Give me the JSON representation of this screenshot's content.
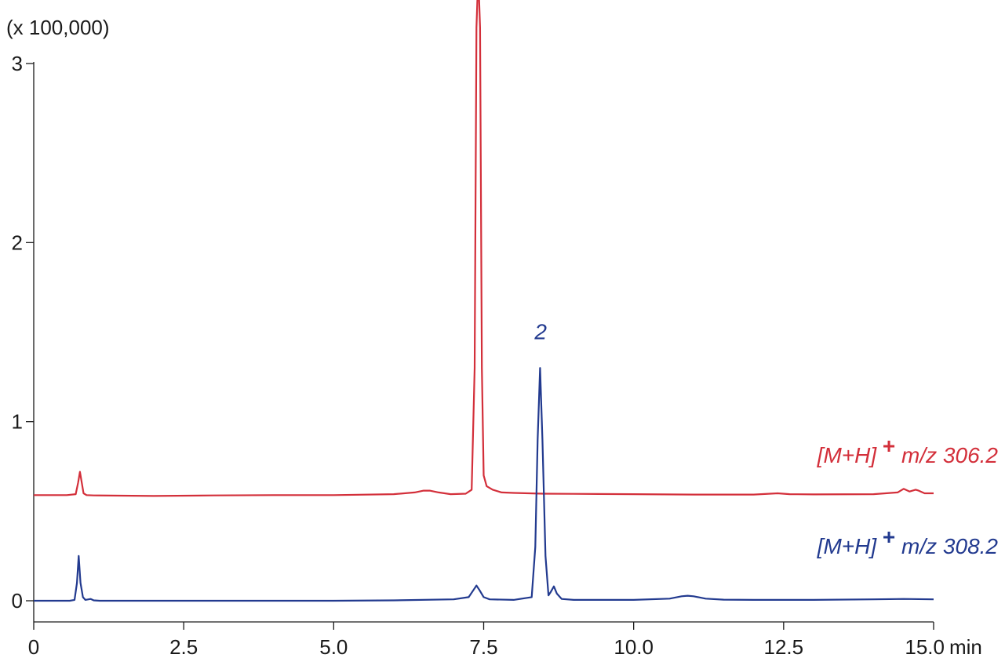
{
  "chart_data": {
    "type": "line",
    "ylabel": "(x 100,000)",
    "xunit": "min",
    "xlim": [
      0,
      15
    ],
    "ylim": [
      0,
      3
    ],
    "xticks": [
      "0",
      "2.5",
      "5.0",
      "7.5",
      "10.0",
      "12.5",
      "15.0"
    ],
    "yticks": [
      "0",
      "1",
      "2",
      "3"
    ],
    "annotations": [
      {
        "text": "2",
        "x": 8.45,
        "y": 1.46,
        "color": "#223a8f"
      }
    ],
    "series": [
      {
        "name": "[M+H] + m/z 306.2",
        "label_main": "[M+H]",
        "label_sup": "+",
        "label_tail": "m/z 306.2",
        "color": "#d32f3a",
        "x": [
          0,
          0.55,
          0.7,
          0.74,
          0.77,
          0.8,
          0.83,
          0.88,
          1.0,
          2.0,
          3.0,
          4.0,
          5.0,
          6.0,
          6.35,
          6.5,
          6.6,
          6.75,
          6.95,
          7.2,
          7.3,
          7.35,
          7.38,
          7.41,
          7.44,
          7.47,
          7.5,
          7.55,
          7.65,
          7.8,
          8.0,
          8.5,
          9.0,
          10.0,
          11.0,
          12.0,
          12.4,
          12.6,
          13.0,
          14.0,
          14.4,
          14.5,
          14.6,
          14.7,
          14.75,
          14.85,
          15.0
        ],
        "y": [
          0.59,
          0.59,
          0.595,
          0.66,
          0.72,
          0.66,
          0.6,
          0.59,
          0.588,
          0.585,
          0.588,
          0.59,
          0.59,
          0.595,
          0.605,
          0.615,
          0.615,
          0.605,
          0.595,
          0.598,
          0.62,
          1.3,
          3.2,
          3.5,
          3.2,
          1.3,
          0.7,
          0.64,
          0.62,
          0.605,
          0.602,
          0.598,
          0.597,
          0.595,
          0.593,
          0.593,
          0.6,
          0.595,
          0.594,
          0.595,
          0.605,
          0.625,
          0.61,
          0.62,
          0.615,
          0.6,
          0.6
        ]
      },
      {
        "name": "[M+H] + m/z 308.2",
        "label_main": "[M+H]",
        "label_sup": "+",
        "label_tail": "m/z 308.2",
        "color": "#223a8f",
        "x": [
          0,
          0.6,
          0.68,
          0.72,
          0.75,
          0.78,
          0.82,
          0.86,
          0.95,
          1.0,
          1.1,
          2.0,
          3.0,
          4.0,
          5.0,
          6.0,
          7.0,
          7.25,
          7.33,
          7.38,
          7.43,
          7.5,
          7.6,
          8.0,
          8.3,
          8.36,
          8.4,
          8.44,
          8.48,
          8.53,
          8.58,
          8.62,
          8.67,
          8.72,
          8.8,
          9.0,
          10.0,
          10.6,
          10.8,
          10.9,
          11.0,
          11.2,
          11.5,
          12.0,
          13.0,
          14.0,
          14.5,
          15.0
        ],
        "y": [
          0.0,
          0.0,
          0.005,
          0.1,
          0.25,
          0.1,
          0.02,
          0.005,
          0.01,
          0.002,
          0.0,
          0.0,
          0.0,
          0.0,
          0.0,
          0.002,
          0.008,
          0.02,
          0.06,
          0.085,
          0.06,
          0.02,
          0.008,
          0.005,
          0.02,
          0.3,
          0.9,
          1.3,
          0.9,
          0.25,
          0.03,
          0.05,
          0.08,
          0.04,
          0.01,
          0.005,
          0.005,
          0.012,
          0.025,
          0.028,
          0.025,
          0.012,
          0.006,
          0.005,
          0.005,
          0.008,
          0.01,
          0.008
        ]
      }
    ]
  }
}
